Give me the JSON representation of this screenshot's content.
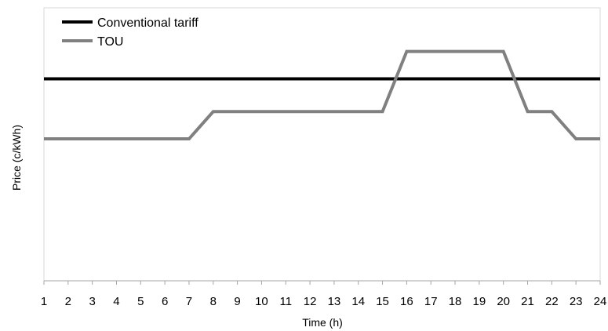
{
  "chart_data": {
    "type": "line",
    "title": "",
    "xlabel": "Time (h)",
    "ylabel": "Price (c/kWh)",
    "x": [
      1,
      2,
      3,
      4,
      5,
      6,
      7,
      8,
      9,
      10,
      11,
      12,
      13,
      14,
      15,
      16,
      17,
      18,
      19,
      20,
      21,
      22,
      23,
      24
    ],
    "xlim": [
      1,
      24
    ],
    "ylim": [
      0,
      10
    ],
    "y_ticks_shown": false,
    "grid": false,
    "legend_position": "top-left",
    "series": [
      {
        "name": "Conventional tariff",
        "color": "#000000",
        "values": [
          7.4,
          7.4,
          7.4,
          7.4,
          7.4,
          7.4,
          7.4,
          7.4,
          7.4,
          7.4,
          7.4,
          7.4,
          7.4,
          7.4,
          7.4,
          7.4,
          7.4,
          7.4,
          7.4,
          7.4,
          7.4,
          7.4,
          7.4,
          7.4
        ]
      },
      {
        "name": "TOU",
        "color": "#808080",
        "values": [
          5.2,
          5.2,
          5.2,
          5.2,
          5.2,
          5.2,
          5.2,
          6.2,
          6.2,
          6.2,
          6.2,
          6.2,
          6.2,
          6.2,
          6.2,
          8.4,
          8.4,
          8.4,
          8.4,
          8.4,
          6.2,
          6.2,
          5.2,
          5.2
        ]
      }
    ]
  }
}
